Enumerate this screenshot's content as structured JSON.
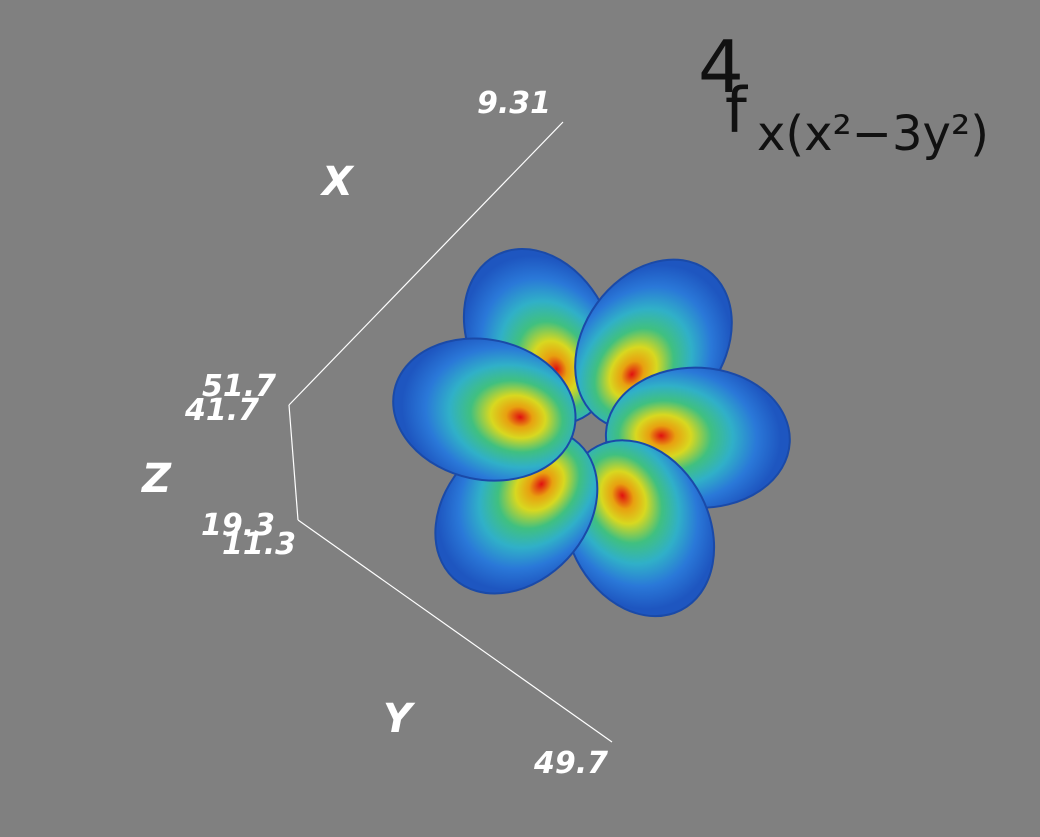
{
  "axes": {
    "x": {
      "label": "X",
      "tick_labels": [
        "9.31"
      ]
    },
    "z": {
      "label": "Z",
      "tick_labels": [
        "51.7",
        "41.7",
        "19.3",
        "11.3"
      ]
    },
    "y": {
      "label": "Y",
      "tick_labels": [
        "49.7"
      ]
    }
  },
  "annotation": {
    "prefix": "4",
    "orbital": "f",
    "subscript": "x(x²−3y²)"
  }
}
